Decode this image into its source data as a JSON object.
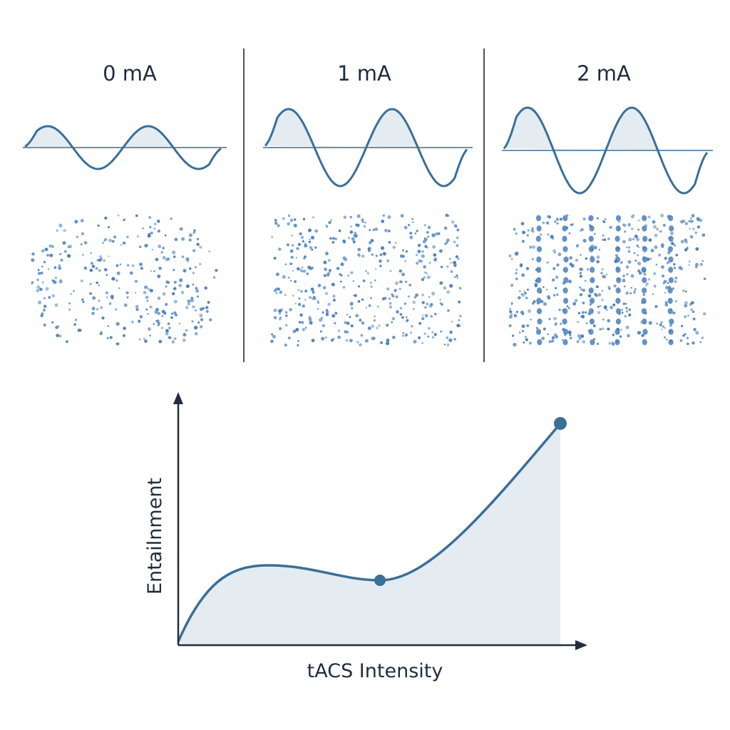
{
  "panels": [
    {
      "label": "0 mA",
      "wave_amplitude": 0.5,
      "entrainment": "low"
    },
    {
      "label": "1 mA",
      "wave_amplitude": 0.9,
      "entrainment": "medium"
    },
    {
      "label": "2 mA",
      "wave_amplitude": 1.0,
      "entrainment": "high"
    }
  ],
  "plot": {
    "xlabel": "tACS Intensity",
    "ylabel": "Entailnment",
    "marked_points": [
      "1 mA",
      "2 mA"
    ]
  },
  "colors": {
    "line": "#3a6f98",
    "fill": "#e4ecf1",
    "dots": "#4a7fb8",
    "text": "#1f2d3d",
    "divider": "#4a5560"
  }
}
